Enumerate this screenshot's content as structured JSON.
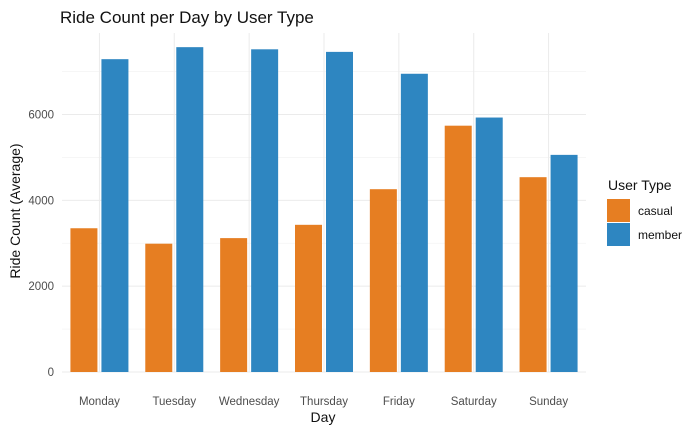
{
  "chart_data": {
    "type": "bar",
    "title": "Ride Count per Day by User Type",
    "xlabel": "Day",
    "ylabel": "Ride Count (Average)",
    "categories": [
      "Monday",
      "Tuesday",
      "Wednesday",
      "Thursday",
      "Friday",
      "Saturday",
      "Sunday"
    ],
    "series": [
      {
        "name": "casual",
        "color": "#E67E22",
        "values": [
          3350,
          2990,
          3120,
          3430,
          4260,
          5740,
          4540
        ]
      },
      {
        "name": "member",
        "color": "#2E86C1",
        "values": [
          7290,
          7570,
          7520,
          7460,
          6950,
          5930,
          5060
        ]
      }
    ],
    "ylim": [
      0,
      7900
    ],
    "yticks": [
      0,
      2000,
      4000,
      6000
    ],
    "grid": true,
    "legend": {
      "title": "User Type",
      "position": "right"
    }
  }
}
